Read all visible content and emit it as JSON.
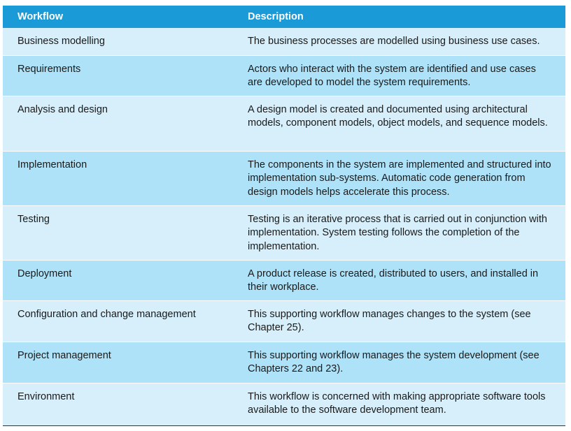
{
  "table": {
    "headers": {
      "workflow": "Workflow",
      "description": "Description"
    },
    "rows": [
      {
        "workflow": "Business modelling",
        "description": "The business processes are modelled using business use cases."
      },
      {
        "workflow": "Requirements",
        "description": "Actors who interact with the system are identified and use cases are developed to model the system requirements."
      },
      {
        "workflow": "Analysis and design",
        "description": "A design model is created and documented using architectural models, component models, object models, and sequence models."
      },
      {
        "workflow": "Implementation",
        "description": "The components in the system are implemented and structured into implementation sub-systems. Automatic code generation from design models helps accelerate this process."
      },
      {
        "workflow": "Testing",
        "description": "Testing is an iterative process that is carried out in conjunction with implementation. System testing follows the completion of the implementation."
      },
      {
        "workflow": "Deployment",
        "description": "A product release is created, distributed to users, and installed in their workplace."
      },
      {
        "workflow": "Configuration and change management",
        "description": "This supporting workflow manages changes to the system (see Chapter 25)."
      },
      {
        "workflow": "Project management",
        "description": "This supporting workflow manages the system development (see Chapters 22 and 23)."
      },
      {
        "workflow": "Environment",
        "description": "This workflow is concerned with making appropriate software tools available to the software development team."
      }
    ]
  },
  "colors": {
    "header_bg": "#1a9ad6",
    "row_light": "#d6effb",
    "row_alt": "#ade2f8"
  }
}
